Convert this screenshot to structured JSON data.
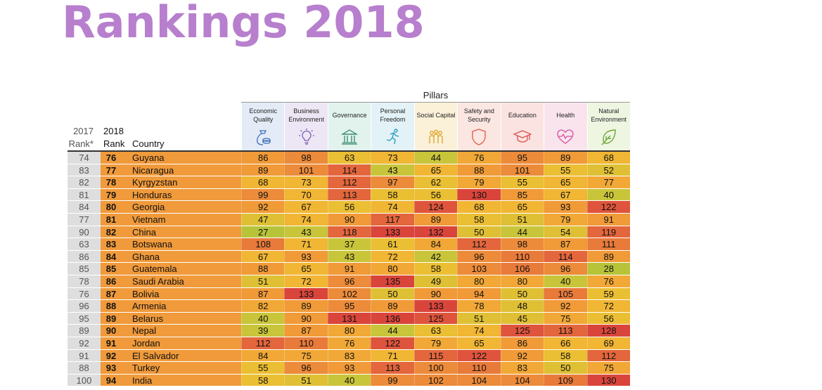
{
  "title": "Rankings 2018",
  "pillars_label": "Pillars",
  "headers": {
    "rank2017": "2017 Rank*",
    "rank2017_line1": "2017",
    "rank2017_line2": "Rank*",
    "rank2018_line1": "2018",
    "rank2018_line2": "Rank",
    "country": "Country"
  },
  "pillars": [
    {
      "line1": "Economic",
      "line2": "Quality",
      "icon": "money-bag-icon",
      "color": "#e4ebf7"
    },
    {
      "line1": "Business",
      "line2": "Environment",
      "icon": "lightbulb-icon",
      "color": "#ede6f4"
    },
    {
      "line1": "Governance",
      "line2": "",
      "icon": "government-building-icon",
      "color": "#e2f2ec"
    },
    {
      "line1": "Personal",
      "line2": "Freedom",
      "icon": "running-person-icon",
      "color": "#e3f2f6"
    },
    {
      "line1": "Social Capital",
      "line2": "",
      "icon": "people-group-icon",
      "color": "#fbf1d9"
    },
    {
      "line1": "Safety and",
      "line2": "Security",
      "icon": "shield-icon",
      "color": "#fbe6e2"
    },
    {
      "line1": "Education",
      "line2": "",
      "icon": "graduation-cap-icon",
      "color": "#fbe3e1"
    },
    {
      "line1": "Health",
      "line2": "",
      "icon": "heartbeat-icon",
      "color": "#f9e4ee"
    },
    {
      "line1": "Natural",
      "line2": "Environment",
      "icon": "leaf-icon",
      "color": "#eef5e1"
    }
  ],
  "rows": [
    {
      "r2017": "74",
      "r2018": "76",
      "country": "Guyana",
      "values": [
        86,
        98,
        63,
        73,
        44,
        76,
        95,
        89,
        68
      ]
    },
    {
      "r2017": "83",
      "r2018": "77",
      "country": "Nicaragua",
      "values": [
        89,
        101,
        114,
        43,
        65,
        88,
        101,
        55,
        52
      ]
    },
    {
      "r2017": "82",
      "r2018": "78",
      "country": "Kyrgyzstan",
      "values": [
        68,
        73,
        112,
        97,
        62,
        79,
        55,
        65,
        77
      ]
    },
    {
      "r2017": "81",
      "r2018": "79",
      "country": "Honduras",
      "values": [
        99,
        70,
        113,
        58,
        56,
        130,
        85,
        67,
        40
      ]
    },
    {
      "r2017": "84",
      "r2018": "80",
      "country": "Georgia",
      "values": [
        92,
        67,
        56,
        74,
        124,
        68,
        65,
        93,
        122
      ]
    },
    {
      "r2017": "77",
      "r2018": "81",
      "country": "Vietnam",
      "values": [
        47,
        74,
        90,
        117,
        89,
        58,
        51,
        79,
        91
      ]
    },
    {
      "r2017": "90",
      "r2018": "82",
      "country": "China",
      "values": [
        27,
        43,
        118,
        133,
        132,
        50,
        44,
        54,
        119
      ]
    },
    {
      "r2017": "63",
      "r2018": "83",
      "country": "Botswana",
      "values": [
        108,
        71,
        37,
        61,
        84,
        112,
        98,
        87,
        111
      ]
    },
    {
      "r2017": "86",
      "r2018": "84",
      "country": "Ghana",
      "values": [
        67,
        93,
        43,
        72,
        42,
        96,
        110,
        114,
        89
      ]
    },
    {
      "r2017": "85",
      "r2018": "85",
      "country": "Guatemala",
      "values": [
        88,
        65,
        91,
        80,
        58,
        103,
        106,
        96,
        28
      ]
    },
    {
      "r2017": "78",
      "r2018": "86",
      "country": "Saudi Arabia",
      "values": [
        51,
        72,
        96,
        135,
        49,
        80,
        80,
        40,
        76
      ]
    },
    {
      "r2017": "76",
      "r2018": "87",
      "country": "Bolivia",
      "values": [
        87,
        133,
        102,
        50,
        90,
        94,
        50,
        105,
        59
      ]
    },
    {
      "r2017": "96",
      "r2018": "88",
      "country": "Armenia",
      "values": [
        82,
        89,
        95,
        89,
        133,
        78,
        48,
        92,
        72
      ]
    },
    {
      "r2017": "95",
      "r2018": "89",
      "country": "Belarus",
      "values": [
        40,
        90,
        131,
        136,
        125,
        51,
        45,
        75,
        56
      ]
    },
    {
      "r2017": "89",
      "r2018": "90",
      "country": "Nepal",
      "values": [
        39,
        87,
        80,
        44,
        63,
        74,
        125,
        113,
        128
      ]
    },
    {
      "r2017": "92",
      "r2018": "91",
      "country": "Jordan",
      "values": [
        112,
        110,
        76,
        122,
        79,
        65,
        86,
        66,
        69
      ]
    },
    {
      "r2017": "91",
      "r2018": "92",
      "country": "El Salvador",
      "values": [
        84,
        75,
        83,
        71,
        115,
        122,
        92,
        58,
        112
      ]
    },
    {
      "r2017": "88",
      "r2018": "93",
      "country": "Turkey",
      "values": [
        55,
        96,
        93,
        113,
        100,
        110,
        83,
        50,
        75
      ]
    },
    {
      "r2017": "100",
      "r2018": "94",
      "country": "India",
      "values": [
        58,
        51,
        40,
        99,
        102,
        104,
        104,
        109,
        130
      ]
    }
  ]
}
